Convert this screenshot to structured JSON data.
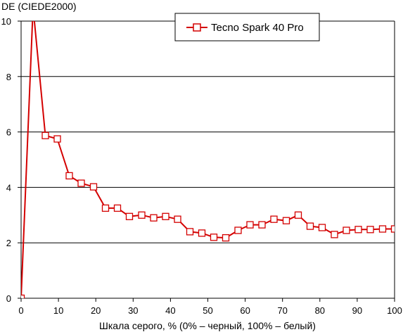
{
  "chart_data": {
    "type": "line",
    "title": "",
    "ylabel": "DE (CIEDE2000)",
    "xlabel": "Шкала серого, % (0% – черный, 100% – белый)",
    "xlim": [
      0,
      100
    ],
    "ylim": [
      0,
      10
    ],
    "x_ticks": [
      "0",
      "10",
      "20",
      "30",
      "40",
      "50",
      "60",
      "70",
      "80",
      "90",
      "100"
    ],
    "y_ticks": [
      "0",
      "2",
      "4",
      "6",
      "8",
      "10"
    ],
    "grid": "horizontal",
    "legend_position": "top-right",
    "colors": {
      "series": "#d40000",
      "grid": "#000000",
      "background": "#ffffff"
    },
    "series": [
      {
        "name": "Tecno Spark 40 Pro",
        "x": [
          0,
          3.2,
          6.5,
          9.7,
          12.9,
          16.1,
          19.4,
          22.6,
          25.8,
          29.0,
          32.3,
          35.5,
          38.7,
          41.9,
          45.2,
          48.4,
          51.6,
          54.8,
          58.1,
          61.3,
          64.5,
          67.7,
          71.0,
          74.2,
          77.4,
          80.6,
          83.9,
          87.1,
          90.3,
          93.5,
          96.8,
          100
        ],
        "values": [
          0,
          10.5,
          5.87,
          5.75,
          4.42,
          4.15,
          4.02,
          3.25,
          3.25,
          2.95,
          3.0,
          2.9,
          2.95,
          2.85,
          2.4,
          2.35,
          2.2,
          2.18,
          2.45,
          2.65,
          2.65,
          2.85,
          2.8,
          3.0,
          2.6,
          2.55,
          2.3,
          2.45,
          2.48,
          2.48,
          2.5,
          2.5
        ]
      }
    ]
  }
}
